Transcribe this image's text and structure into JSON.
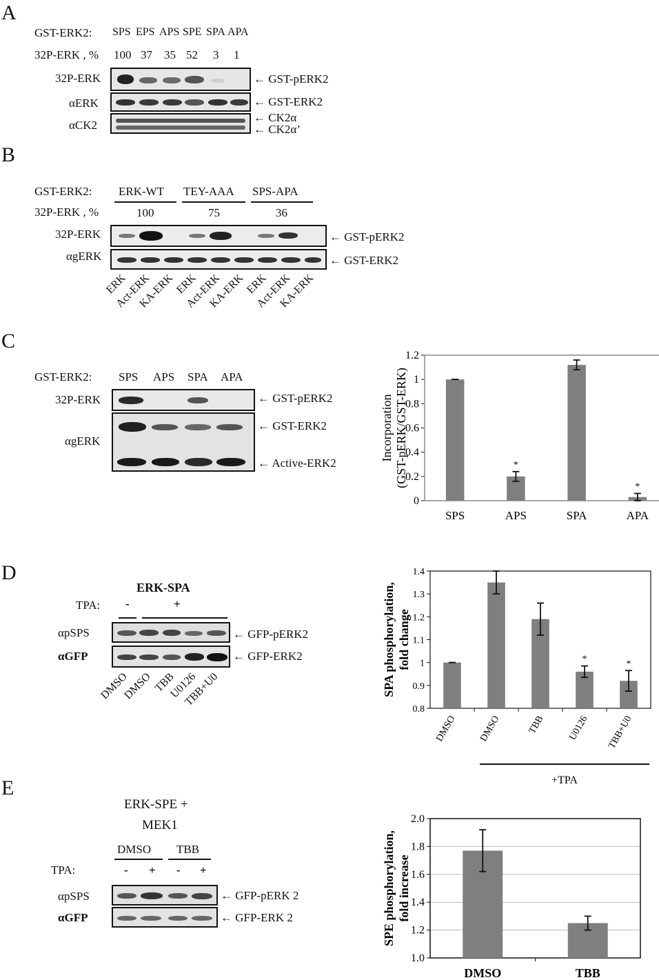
{
  "panelA": {
    "letter": "A",
    "row1_label": "GST-ERK2:",
    "lanes": [
      "SPS",
      "EPS",
      "APS",
      "SPE",
      "SPA",
      "APA"
    ],
    "row2_label": "32P-ERK , %",
    "percents": [
      "100",
      "37",
      "35",
      "52",
      "3",
      "1"
    ],
    "blot_labels": [
      "32P-ERK",
      "αERK",
      "αCK2"
    ],
    "arrow_labels": [
      "GST-pERK2",
      "GST-ERK2",
      "CK2α",
      "CK2α’"
    ]
  },
  "panelB": {
    "letter": "B",
    "row1_label": "GST-ERK2:",
    "groups": [
      "ERK-WT",
      "TEY-AAA",
      "SPS-APA"
    ],
    "row2_label": "32P-ERK , %",
    "percents": [
      "100",
      "75",
      "36"
    ],
    "blot_labels": [
      "32P-ERK",
      "αgERK"
    ],
    "arrow_labels": [
      "GST-pERK2",
      "GST-ERK2"
    ],
    "lane_labels": [
      "ERK",
      "Act-ERK",
      "KA-ERK",
      "ERK",
      "Act-ERK",
      "KA-ERK",
      "ERK",
      "Act-ERK",
      "KA-ERK"
    ]
  },
  "panelC": {
    "letter": "C",
    "row1_label": "GST-ERK2:",
    "lanes": [
      "SPS",
      "APS",
      "SPA",
      "APA"
    ],
    "blot_labels": [
      "32P-ERK",
      "αgERK"
    ],
    "arrow_labels": [
      "GST-pERK2",
      "GST-ERK2",
      "Active-ERK2"
    ]
  },
  "panelD": {
    "letter": "D",
    "title": "ERK-SPA",
    "tpa_label": "TPA:",
    "tpa_minus": "-",
    "tpa_plus": "+",
    "blot_labels": [
      "αpSPS",
      "αGFP"
    ],
    "arrow_labels": [
      "GFP-pERK2",
      "GFP-ERK2"
    ],
    "lane_labels": [
      "DMSO",
      "DMSO",
      "TBB",
      "U0126",
      "TBB+U0"
    ]
  },
  "panelE": {
    "letter": "E",
    "title_line1": "ERK-SPE +",
    "title_line2": "MEK1",
    "groups": [
      "DMSO",
      "TBB"
    ],
    "tpa_label": "TPA:",
    "tpa_signs": [
      "-",
      "+",
      "-",
      "+"
    ],
    "blot_labels": [
      "αpSPS",
      "αGFP"
    ],
    "arrow_labels": [
      "GFP-pERK 2",
      "GFP-ERK 2"
    ]
  },
  "chart_data": [
    {
      "type": "bar",
      "categories": [
        "SPS",
        "APS",
        "SPA",
        "APA"
      ],
      "values": [
        1.0,
        0.2,
        1.12,
        0.03
      ],
      "errors": [
        0.0,
        0.04,
        0.04,
        0.03
      ],
      "significance": [
        "",
        "*",
        "",
        "*"
      ],
      "ylabel_line1": "Incorporation",
      "ylabel_line2": "(GST-pERK/GST-ERK)",
      "ylim": [
        0,
        1.2
      ],
      "yticks": [
        "0",
        "0.2",
        "0.4",
        "0.6",
        "0.8",
        "1",
        "1.2"
      ],
      "grid": false,
      "bar_color": "#7f7f7f"
    },
    {
      "type": "bar",
      "categories": [
        "DMSO",
        "DMSO",
        "TBB",
        "U0126",
        "TBB+U0"
      ],
      "values": [
        1.0,
        1.35,
        1.19,
        0.96,
        0.92
      ],
      "errors": [
        0.0,
        0.05,
        0.07,
        0.025,
        0.045
      ],
      "significance": [
        "",
        "",
        "",
        "*",
        "*"
      ],
      "ylabel_line1": "SPA phosphorylation,",
      "ylabel_line2": "fold change",
      "ylim": [
        0.8,
        1.4
      ],
      "yticks": [
        "0.8",
        "0.9",
        "1",
        "1.1",
        "1.2",
        "1.3",
        "1.4"
      ],
      "bracket_label": "+TPA",
      "grid": false,
      "bar_color": "#7f7f7f"
    },
    {
      "type": "bar",
      "categories": [
        "DMSO",
        "TBB"
      ],
      "values": [
        1.77,
        1.25
      ],
      "errors": [
        0.15,
        0.05
      ],
      "ylabel_line1": "SPE phosphorylation,",
      "ylabel_line2": "fold increase",
      "ylim": [
        1.0,
        2.0
      ],
      "yticks": [
        "1.0",
        "1.2",
        "1.4",
        "1.6",
        "1.8",
        "2.0"
      ],
      "grid": true,
      "bar_color": "#7f7f7f"
    }
  ]
}
